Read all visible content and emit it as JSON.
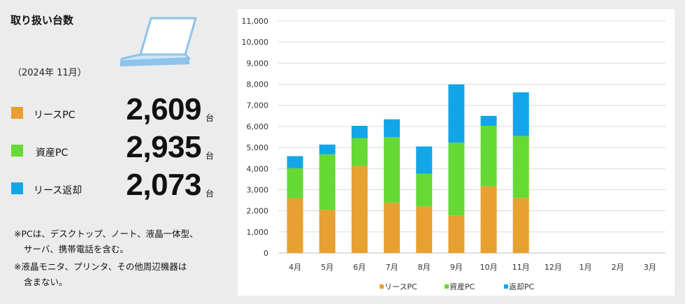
{
  "summary": {
    "title": "取り扱い台数",
    "period": "（2024年 11月）",
    "items": [
      {
        "label": "リースPC",
        "value": "2,609",
        "unit": "台",
        "color": "#e8a031"
      },
      {
        "label": "資産PC",
        "value": "2,935",
        "unit": "台",
        "color": "#66d934"
      },
      {
        "label": "リース返却",
        "value": "2,073",
        "unit": "台",
        "color": "#12a6e8"
      }
    ],
    "notes": [
      "※PCは、デスクトップ、ノート、液晶一体型、",
      "サーバ、携帯電話を含む。",
      "※液晶モニタ、プリンタ、その他周辺機器は",
      "含まない。"
    ]
  },
  "chart_data": {
    "type": "bar",
    "stacked": true,
    "title": "",
    "xlabel": "",
    "ylabel": "",
    "categories": [
      "4月",
      "5月",
      "6月",
      "7月",
      "8月",
      "9月",
      "10月",
      "11月",
      "12月",
      "1月",
      "2月",
      "3月"
    ],
    "series": [
      {
        "name": "リースPC",
        "color": "#e8a031",
        "values": [
          2600,
          2050,
          4130,
          2380,
          2210,
          1780,
          3170,
          2609,
          null,
          null,
          null,
          null
        ]
      },
      {
        "name": "資産PC",
        "color": "#66d934",
        "values": [
          1420,
          2630,
          1320,
          3110,
          1550,
          3450,
          2860,
          2935,
          null,
          null,
          null,
          null
        ]
      },
      {
        "name": "返却PC",
        "color": "#12a6e8",
        "values": [
          570,
          460,
          580,
          850,
          1290,
          2760,
          470,
          2073,
          null,
          null,
          null,
          null
        ]
      }
    ],
    "ylim": [
      0,
      11000
    ],
    "ytick_step": 1000,
    "ytick_labels": [
      "0",
      "1,000",
      "2,000",
      "3,000",
      "4,000",
      "5,000",
      "6,000",
      "7,000",
      "8,000",
      "9,000",
      "10,000",
      "11,000"
    ],
    "grid": true,
    "legend_position": "bottom"
  }
}
